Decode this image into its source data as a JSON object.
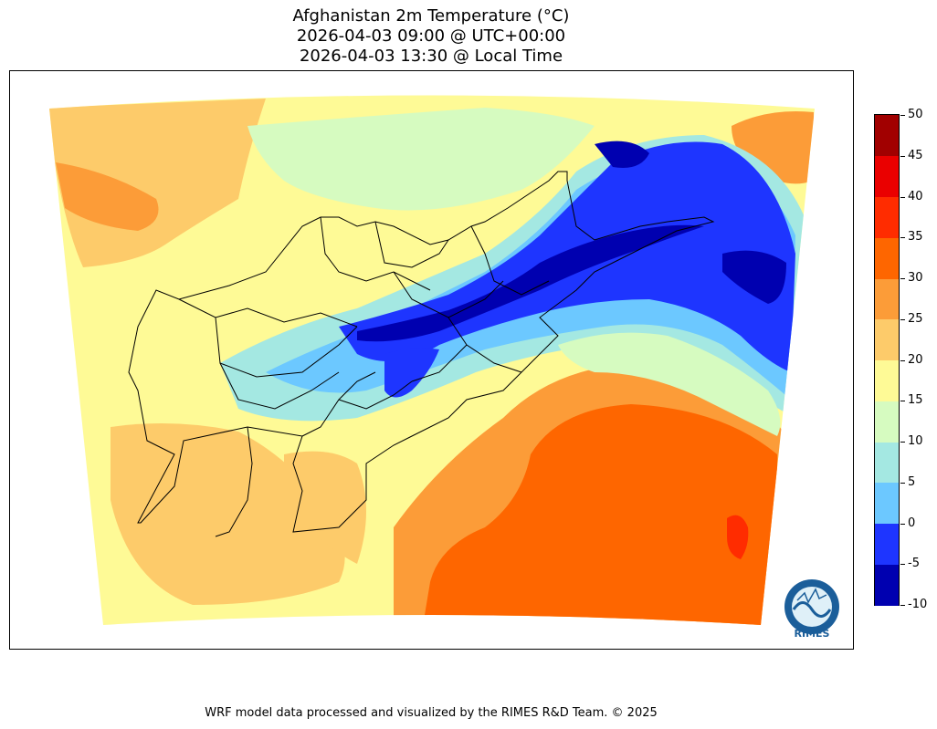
{
  "title": {
    "line1": "Afghanistan 2m Temperature (°C)",
    "line2": "2026-04-03 09:00 @ UTC+00:00",
    "line3": "2026-04-03 13:30 @ Local Time"
  },
  "colorbar": {
    "levels": [
      {
        "label": "-10",
        "color": "#0000b0"
      },
      {
        "label": "-5",
        "color": "#1e35ff"
      },
      {
        "label": "0",
        "color": "#6cc8ff"
      },
      {
        "label": "5",
        "color": "#a4e8e2"
      },
      {
        "label": "10",
        "color": "#d6fbc0"
      },
      {
        "label": "15",
        "color": "#fefa96"
      },
      {
        "label": "20",
        "color": "#fdcb6a"
      },
      {
        "label": "25",
        "color": "#fc9c38"
      },
      {
        "label": "30",
        "color": "#fe6600"
      },
      {
        "label": "35",
        "color": "#ff2c00"
      },
      {
        "label": "40",
        "color": "#ea0000"
      },
      {
        "label": "45",
        "color": "#a10000"
      }
    ],
    "top_label": "50"
  },
  "colors": {
    "deep_cold": "#0000b0",
    "cold": "#1e35ff",
    "cool": "#6cc8ff",
    "mild": "#a4e8e2",
    "pale": "#d6fbc0",
    "warm_yellow": "#fefa96",
    "light_orange": "#fdcb6a",
    "orange": "#fc9c38",
    "hot": "#fe6600",
    "very_hot": "#ff2c00"
  },
  "logo": {
    "text": "RIMES"
  },
  "footer": "WRF model data processed and visualized by the RIMES R&D Team. © 2025"
}
